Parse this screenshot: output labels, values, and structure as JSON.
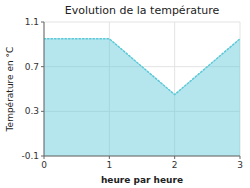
{
  "chart_data": {
    "type": "area",
    "title": "Evolution de la température",
    "x_label": "heure par heure",
    "y_label": "Température en °C",
    "x": [
      0,
      1,
      2,
      3
    ],
    "values": [
      0.95,
      0.95,
      0.45,
      0.95
    ],
    "xlim": [
      0,
      3
    ],
    "ylim": [
      -0.1,
      1.1
    ],
    "xticks": [
      0,
      1,
      2,
      3
    ],
    "yticks": [
      -0.1,
      0.3,
      0.7,
      1.1
    ],
    "color": "#5bc8d8",
    "line_style": "dotted",
    "grid": true
  }
}
